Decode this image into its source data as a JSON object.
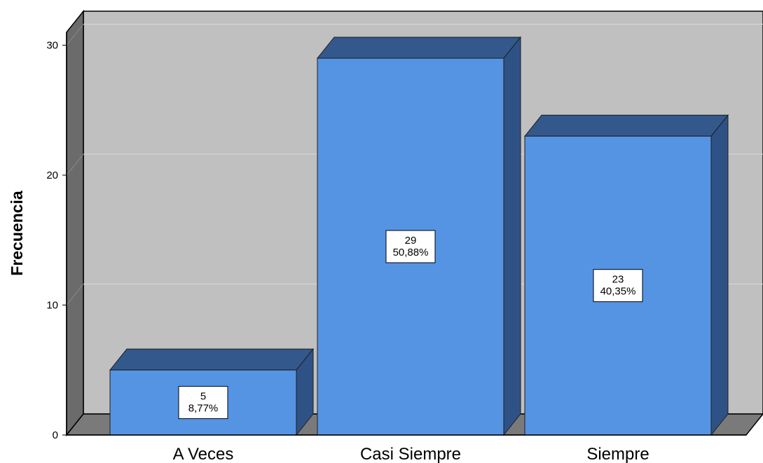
{
  "chart_data": {
    "type": "bar",
    "style": "3d",
    "title": "",
    "xlabel": "",
    "ylabel": "Frecuencia",
    "ylim": [
      0,
      31
    ],
    "yticks": [
      0,
      10,
      20,
      30
    ],
    "ytick_labels": [
      "0",
      "10",
      "20",
      "30"
    ],
    "grid": true,
    "categories": [
      "A Veces",
      "Casi Siempre",
      "Siempre"
    ],
    "values": [
      5,
      29,
      23
    ],
    "data_labels": [
      {
        "count": "5",
        "percent": "8,77%"
      },
      {
        "count": "29",
        "percent": "50,88%"
      },
      {
        "count": "23",
        "percent": "40,35%"
      }
    ]
  },
  "colors": {
    "bar_front": "#5594e3",
    "bar_top": "#33598c",
    "bar_side": "#2f5286",
    "plot_back": "#c0c0c0",
    "left_wall": "#6b6b6b",
    "floor": "#7a7a7a",
    "gridline": "#d9d9d9",
    "label_box": "#ffffff"
  }
}
